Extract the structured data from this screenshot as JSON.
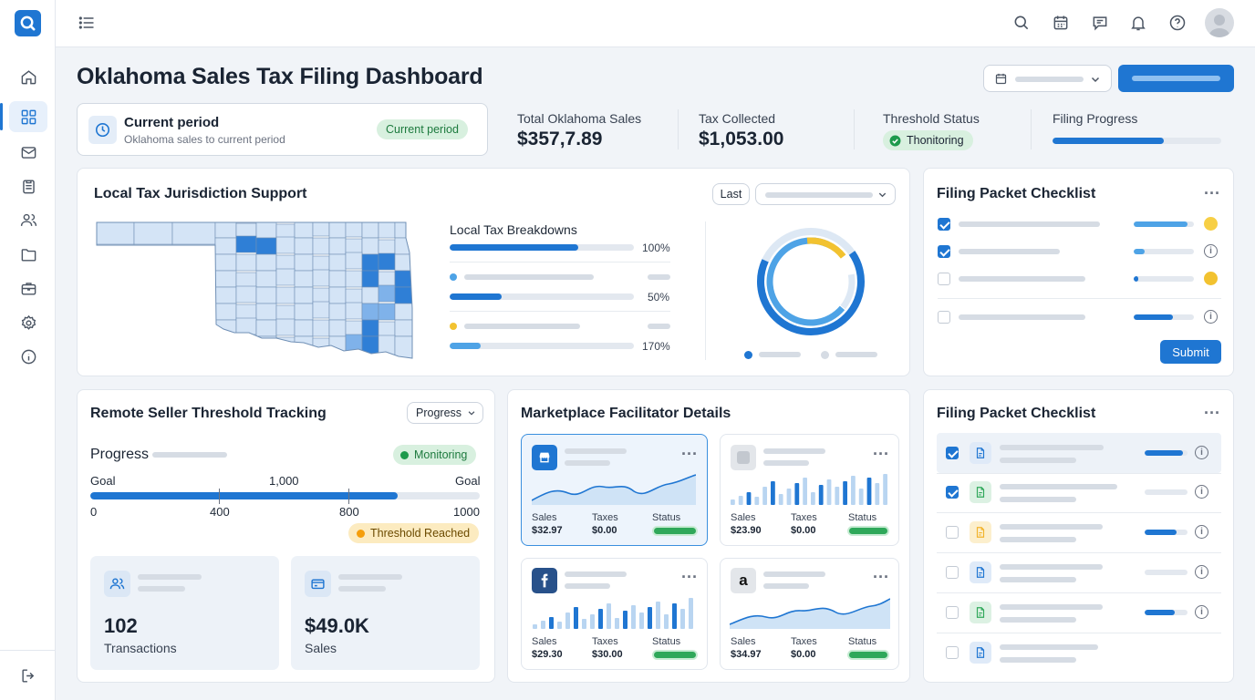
{
  "page_title": "Oklahoma Sales Tax Filing Dashboard",
  "colors": {
    "primary": "#1f76d2",
    "success": "#2fa85a",
    "warning": "#f2c230"
  },
  "sidebar": {
    "items": [
      "home-icon",
      "dashboard-icon",
      "mail-icon",
      "clipboard-icon",
      "users-icon",
      "folder-icon",
      "briefcase-icon",
      "settings-icon",
      "info-icon"
    ],
    "footer": "logout-icon"
  },
  "topbar": {
    "icons": [
      "menu-icon",
      "search-icon",
      "calendar-icon",
      "chat-icon",
      "bell-icon",
      "help-icon",
      "avatar"
    ]
  },
  "period_card": {
    "title": "Current period",
    "subtitle": "Oklahoma sales to current period",
    "badge": "Current period"
  },
  "stats": [
    {
      "label": "Total Oklahoma Sales",
      "value": "$357,7.89"
    },
    {
      "label": "Tax Collected",
      "value": "$1,053.00"
    },
    {
      "label": "Threshold Status",
      "badge": "Thonitoring"
    },
    {
      "label": "Filing Progress",
      "progress": 0.66
    }
  ],
  "jurisdiction": {
    "title": "Local Tax Jurisdiction Support",
    "period_select": "Last",
    "breakdown_title": "Local Tax Breakdowns",
    "bars": [
      {
        "label": "100%",
        "fill": 0.7
      },
      {
        "label": "50%",
        "fill": 0.28
      },
      {
        "label": "170%",
        "fill": 0.17
      }
    ]
  },
  "checklist_top": {
    "title": "Filing Packet Checklist",
    "submit": "Submit",
    "items": [
      {
        "checked": true
      },
      {
        "checked": true
      },
      {
        "checked": false
      },
      {
        "checked": false
      }
    ]
  },
  "threshold": {
    "title": "Remote Seller Threshold Tracking",
    "select": "Progress",
    "progress_label": "Progress",
    "monitoring": "Monitoring",
    "goal_left": "Goal",
    "goal_mid": "1,000",
    "goal_right": "Goal",
    "fill": 0.79,
    "ticks": [
      "0",
      "400",
      "800",
      "1000"
    ],
    "reached": "Threshold Reached",
    "tiles": [
      {
        "value": "102",
        "label": "Transactions"
      },
      {
        "value": "$49.0K",
        "label": "Sales"
      }
    ]
  },
  "marketplace": {
    "title": "Marketplace Facilitator Details",
    "cards": [
      {
        "sales_label": "Sales",
        "sales": "$32.97",
        "taxes_label": "Taxes",
        "taxes": "$0.00",
        "status_label": "Status"
      },
      {
        "sales_label": "Sales",
        "sales": "$23.90",
        "taxes_label": "Taxes",
        "taxes": "$0.00",
        "status_label": "Status"
      },
      {
        "sales_label": "Sales",
        "sales": "$29.30",
        "taxes_label": "Taxes",
        "taxes": "$30.00",
        "status_label": "Status"
      },
      {
        "sales_label": "Sales",
        "sales": "$34.97",
        "taxes_label": "Taxes",
        "taxes": "$0.00",
        "status_label": "Status"
      }
    ]
  },
  "checklist_bottom": {
    "title": "Filing Packet Checklist",
    "items": [
      {
        "checked": true
      },
      {
        "checked": true
      },
      {
        "checked": false
      },
      {
        "checked": false
      },
      {
        "checked": false
      },
      {
        "checked": false
      }
    ]
  }
}
